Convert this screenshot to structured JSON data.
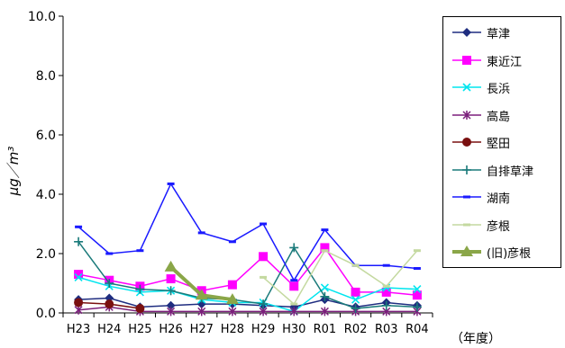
{
  "chart_data": {
    "type": "line",
    "ylabel": "μg／m³",
    "xlabel_note": "（年度）",
    "ylim": [
      0,
      10
    ],
    "yticks": [
      "0.0",
      "2.0",
      "4.0",
      "6.0",
      "8.0",
      "10.0"
    ],
    "categories": [
      "H23",
      "H24",
      "H25",
      "H26",
      "H27",
      "H28",
      "H29",
      "H30",
      "R01",
      "R02",
      "R03",
      "R04"
    ],
    "grid": false,
    "legend_position": "right",
    "series": [
      {
        "name": "草津",
        "color": "#1f2d80",
        "marker": "diamond",
        "values": [
          0.45,
          0.5,
          0.2,
          0.25,
          0.3,
          0.3,
          0.25,
          0.2,
          0.45,
          0.2,
          0.35,
          0.25
        ]
      },
      {
        "name": "東近江",
        "color": "#ff00ff",
        "marker": "square",
        "values": [
          1.3,
          1.1,
          0.9,
          1.15,
          0.75,
          0.95,
          1.9,
          0.9,
          2.2,
          0.7,
          0.7,
          0.6
        ]
      },
      {
        "name": "長浜",
        "color": "#00e5ee",
        "marker": "x",
        "values": [
          1.2,
          0.9,
          0.7,
          0.75,
          0.45,
          0.35,
          0.35,
          0.05,
          0.85,
          0.45,
          0.85,
          0.8
        ]
      },
      {
        "name": "高島",
        "color": "#7b1f7b",
        "marker": "asterisk",
        "values": [
          0.1,
          0.2,
          0.05,
          0.05,
          0.05,
          0.05,
          0.05,
          0.05,
          0.05,
          0.05,
          0.05,
          0.05
        ]
      },
      {
        "name": "堅田",
        "color": "#7a1010",
        "marker": "circle",
        "values": [
          0.35,
          0.3,
          0.15,
          null,
          null,
          null,
          null,
          null,
          null,
          null,
          null,
          null
        ]
      },
      {
        "name": "自排草津",
        "color": "#1a7a7a",
        "marker": "plus",
        "values": [
          2.4,
          1.0,
          0.8,
          0.75,
          0.5,
          0.45,
          0.3,
          2.2,
          0.55,
          0.15,
          0.25,
          0.2
        ]
      },
      {
        "name": "湖南",
        "color": "#1a1aff",
        "marker": "dash",
        "values": [
          2.9,
          2.0,
          2.1,
          4.35,
          2.7,
          2.4,
          3.0,
          1.1,
          2.8,
          1.6,
          1.6,
          1.5
        ]
      },
      {
        "name": "彦根",
        "color": "#c4d9a0",
        "marker": "dash",
        "values": [
          null,
          null,
          null,
          null,
          null,
          null,
          1.2,
          0.3,
          2.1,
          1.6,
          0.9,
          2.1
        ]
      },
      {
        "name": "(旧)彦根",
        "color": "#8aa648",
        "marker": "triangle",
        "values": [
          null,
          null,
          null,
          1.55,
          0.6,
          0.45,
          null,
          null,
          null,
          null,
          null,
          null
        ]
      }
    ]
  }
}
